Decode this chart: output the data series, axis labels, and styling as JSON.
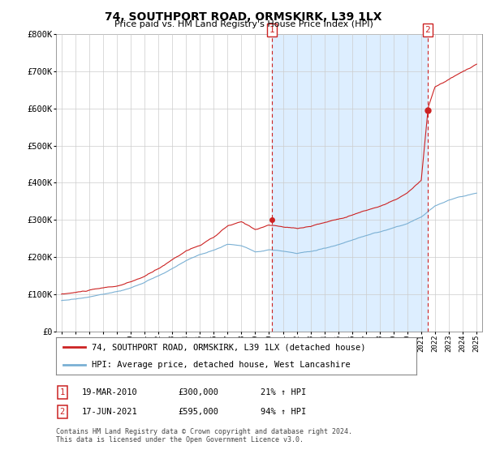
{
  "title": "74, SOUTHPORT ROAD, ORMSKIRK, L39 1LX",
  "subtitle": "Price paid vs. HM Land Registry's House Price Index (HPI)",
  "ylabel_ticks": [
    "£0",
    "£100K",
    "£200K",
    "£300K",
    "£400K",
    "£500K",
    "£600K",
    "£700K",
    "£800K"
  ],
  "ytick_vals": [
    0,
    100000,
    200000,
    300000,
    400000,
    500000,
    600000,
    700000,
    800000
  ],
  "ylim": [
    0,
    800000
  ],
  "xlim_start": 1994.6,
  "xlim_end": 2025.4,
  "red_line_color": "#cc2222",
  "blue_line_color": "#7ab0d4",
  "shade_color": "#ddeeff",
  "vline_color": "#cc2222",
  "grid_color": "#cccccc",
  "bg_color": "#ffffff",
  "legend_label_red": "74, SOUTHPORT ROAD, ORMSKIRK, L39 1LX (detached house)",
  "legend_label_blue": "HPI: Average price, detached house, West Lancashire",
  "annotation1": {
    "label": "1",
    "year": 2010.22,
    "price": 300000,
    "text_date": "19-MAR-2010",
    "text_price": "£300,000",
    "text_hpi": "21% ↑ HPI"
  },
  "annotation2": {
    "label": "2",
    "year": 2021.46,
    "price": 595000,
    "text_date": "17-JUN-2021",
    "text_price": "£595,000",
    "text_hpi": "94% ↑ HPI"
  },
  "footer": "Contains HM Land Registry data © Crown copyright and database right 2024.\nThis data is licensed under the Open Government Licence v3.0."
}
